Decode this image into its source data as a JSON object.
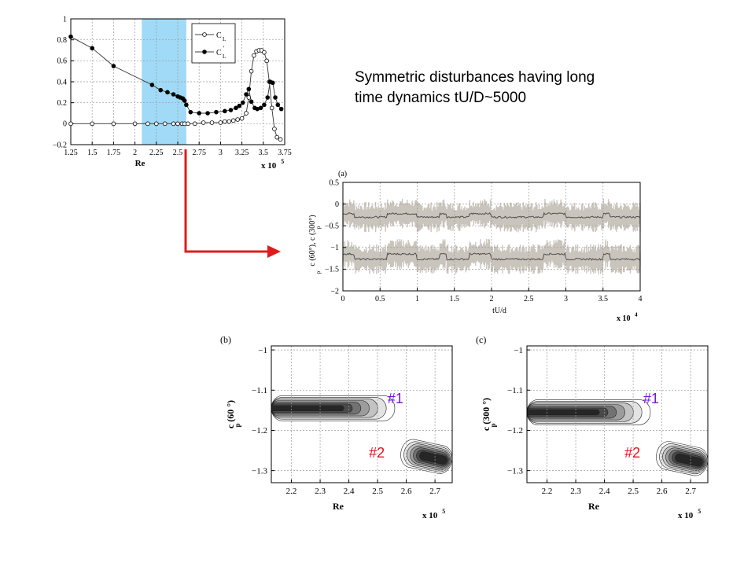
{
  "colors": {
    "highlight": "#8fd3f4",
    "arrow": "#e01b1b",
    "signal": "#c9c4bc",
    "mean_line": "#505050",
    "label_purple": "#7b16d8",
    "label_red": "#e0121e"
  },
  "annotation": {
    "line1": "Symmetric disturbances having long",
    "line2": "time dynamics tU/D~5000"
  },
  "chart_data": [
    {
      "id": "top-left",
      "type": "line",
      "xlabel": "Re",
      "x_multiplier": "x 10",
      "x_multiplier_exp": "5",
      "xlim": [
        1.25,
        3.75
      ],
      "ylim": [
        -0.2,
        1.0
      ],
      "x_ticks": [
        "1.25",
        "1.5",
        "1.75",
        "2",
        "2.25",
        "2.5",
        "2.75",
        "3",
        "3.25",
        "3.5",
        "3.75"
      ],
      "y_ticks": [
        "−0.2",
        "0",
        "0.2",
        "0.4",
        "0.6",
        "0.8",
        "1"
      ],
      "grid": true,
      "highlight_x": [
        2.08,
        2.6
      ],
      "legend": {
        "placement": "top-right",
        "entries": [
          "C",
          "C"
        ],
        "subscripts": [
          "L",
          "L"
        ],
        "primes": [
          "",
          "'"
        ]
      },
      "series": [
        {
          "name": "C_L",
          "marker": "open-circle",
          "x": [
            1.25,
            1.5,
            1.75,
            2.0,
            2.15,
            2.25,
            2.35,
            2.45,
            2.5,
            2.55,
            2.58,
            2.62,
            2.7,
            2.8,
            2.9,
            3.0,
            3.05,
            3.1,
            3.15,
            3.2,
            3.25,
            3.3,
            3.33,
            3.36,
            3.39,
            3.42,
            3.45,
            3.48,
            3.51,
            3.54,
            3.57,
            3.6,
            3.63,
            3.66,
            3.7
          ],
          "y": [
            0.0,
            0.0,
            0.0,
            0.0,
            0.0,
            0.0,
            0.0,
            0.0,
            0.0,
            0.0,
            0.0,
            0.0,
            0.0,
            0.01,
            0.01,
            0.01,
            0.02,
            0.02,
            0.03,
            0.04,
            0.05,
            0.1,
            0.25,
            0.5,
            0.65,
            0.69,
            0.7,
            0.7,
            0.68,
            0.6,
            0.4,
            0.15,
            -0.05,
            -0.13,
            -0.15
          ]
        },
        {
          "name": "C_L'",
          "marker": "filled-circle",
          "x": [
            1.25,
            1.5,
            1.75,
            2.2,
            2.3,
            2.38,
            2.45,
            2.5,
            2.53,
            2.56,
            2.58,
            2.6,
            2.65,
            2.75,
            2.85,
            2.95,
            3.05,
            3.12,
            3.18,
            3.22,
            3.26,
            3.3,
            3.33,
            3.36,
            3.4,
            3.43,
            3.47,
            3.51,
            3.55,
            3.58,
            3.61,
            3.64,
            3.67,
            3.71
          ],
          "y": [
            0.83,
            0.72,
            0.55,
            0.37,
            0.32,
            0.3,
            0.28,
            0.26,
            0.25,
            0.24,
            0.22,
            0.18,
            0.11,
            0.1,
            0.1,
            0.11,
            0.12,
            0.13,
            0.15,
            0.17,
            0.2,
            0.28,
            0.33,
            0.21,
            0.15,
            0.14,
            0.15,
            0.18,
            0.25,
            0.4,
            0.39,
            0.25,
            0.18,
            0.14
          ]
        }
      ]
    },
    {
      "id": "panel-a",
      "type": "line",
      "panel_label": "(a)",
      "xlabel": "tU/d",
      "ylabel": "c (60°), c (300°)",
      "ylabel_subscripts": "p p",
      "x_multiplier": "x 10",
      "x_multiplier_exp": "4",
      "xlim": [
        0,
        4
      ],
      "ylim": [
        -2,
        0.5
      ],
      "x_ticks": [
        "0",
        "0.5",
        "1",
        "1.5",
        "2",
        "2.5",
        "3",
        "3.5",
        "4"
      ],
      "y_ticks": [
        "−2",
        "−1.5",
        "−1",
        "−0.5",
        "0",
        "0.5"
      ],
      "grid": true,
      "series": [
        {
          "name": "c_p(60°) mean",
          "upper_level": -0.22,
          "lower_level": -0.3,
          "switch_points": [
            0.15,
            0.6,
            1.0,
            1.3,
            1.4,
            1.7,
            2.0,
            2.7,
            3.0,
            3.5,
            3.6
          ],
          "noise_amplitude": 0.25
        },
        {
          "name": "c_p(300°) mean",
          "upper_level": -1.15,
          "lower_level": -1.27,
          "switch_points": [
            0.15,
            0.6,
            1.0,
            1.3,
            1.4,
            1.7,
            2.0,
            2.7,
            3.0,
            3.5,
            3.6
          ],
          "noise_amplitude": 0.25
        }
      ]
    },
    {
      "id": "panel-b",
      "type": "heatmap",
      "panel_label": "(b)",
      "xlabel": "Re",
      "ylabel": "c (60 °)",
      "ylabel_subscript": "p",
      "x_multiplier": "x 10",
      "x_multiplier_exp": "5",
      "xlim": [
        2.13,
        2.76
      ],
      "ylim": [
        -1.33,
        -0.99
      ],
      "x_ticks": [
        "2.2",
        "2.3",
        "2.4",
        "2.5",
        "2.6",
        "2.7"
      ],
      "y_ticks": [
        "−1",
        "−1.1",
        "−1.2",
        "−1.3"
      ],
      "grid": true,
      "clusters": [
        {
          "label": "#1",
          "x_range": [
            2.13,
            2.56
          ],
          "y_center": -1.145,
          "label_color": "purple"
        },
        {
          "label": "#2",
          "x_range": [
            2.58,
            2.76
          ],
          "y_center": -1.265,
          "label_color": "red"
        }
      ]
    },
    {
      "id": "panel-c",
      "type": "heatmap",
      "panel_label": "(c)",
      "xlabel": "Re",
      "ylabel": "c (300 °)",
      "ylabel_subscript": "p",
      "x_multiplier": "x 10",
      "x_multiplier_exp": "5",
      "xlim": [
        2.13,
        2.76
      ],
      "ylim": [
        -1.33,
        -0.99
      ],
      "x_ticks": [
        "2.2",
        "2.3",
        "2.4",
        "2.5",
        "2.6",
        "2.7"
      ],
      "y_ticks": [
        "−1",
        "−1.1",
        "−1.2",
        "−1.3"
      ],
      "grid": true,
      "clusters": [
        {
          "label": "#1",
          "x_range": [
            2.13,
            2.56
          ],
          "y_center": -1.155,
          "label_color": "purple"
        },
        {
          "label": "#2",
          "x_range": [
            2.58,
            2.76
          ],
          "y_center": -1.27,
          "label_color": "red"
        }
      ]
    }
  ]
}
